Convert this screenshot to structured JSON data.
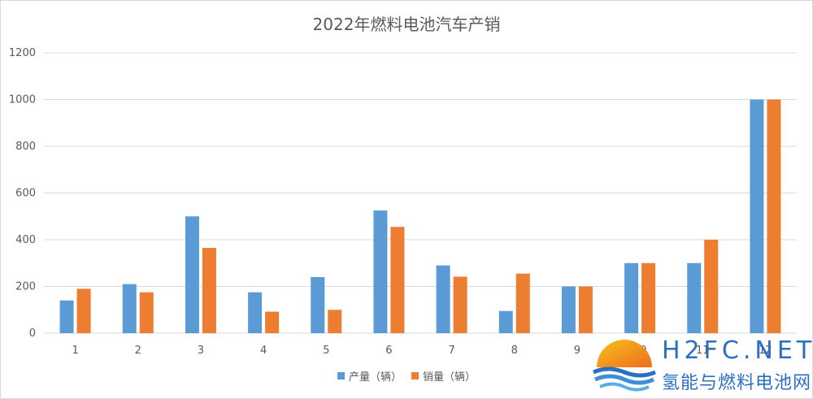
{
  "chart_data": {
    "type": "bar",
    "title": "2022年燃料电池汽车产销",
    "xlabel": "",
    "ylabel": "",
    "categories": [
      "1",
      "2",
      "3",
      "4",
      "5",
      "6",
      "7",
      "8",
      "9",
      "10",
      "11",
      "12"
    ],
    "series": [
      {
        "name": "产量（辆）",
        "color": "#5b9bd5",
        "values": [
          140,
          210,
          500,
          175,
          240,
          525,
          290,
          95,
          200,
          300,
          300,
          1000
        ]
      },
      {
        "name": "销量（辆）",
        "color": "#ed7d31",
        "values": [
          190,
          175,
          365,
          92,
          100,
          455,
          242,
          255,
          200,
          300,
          400,
          1000
        ]
      }
    ],
    "ylim": [
      0,
      1200
    ],
    "yticks": [
      0,
      200,
      400,
      600,
      800,
      1000,
      1200
    ],
    "grid": true,
    "legend_position": "bottom"
  },
  "watermark": {
    "brand": "H2FC.NET",
    "subtitle": "氢能与燃料电池网",
    "logo_icon": "sun-waves-logo-icon"
  }
}
